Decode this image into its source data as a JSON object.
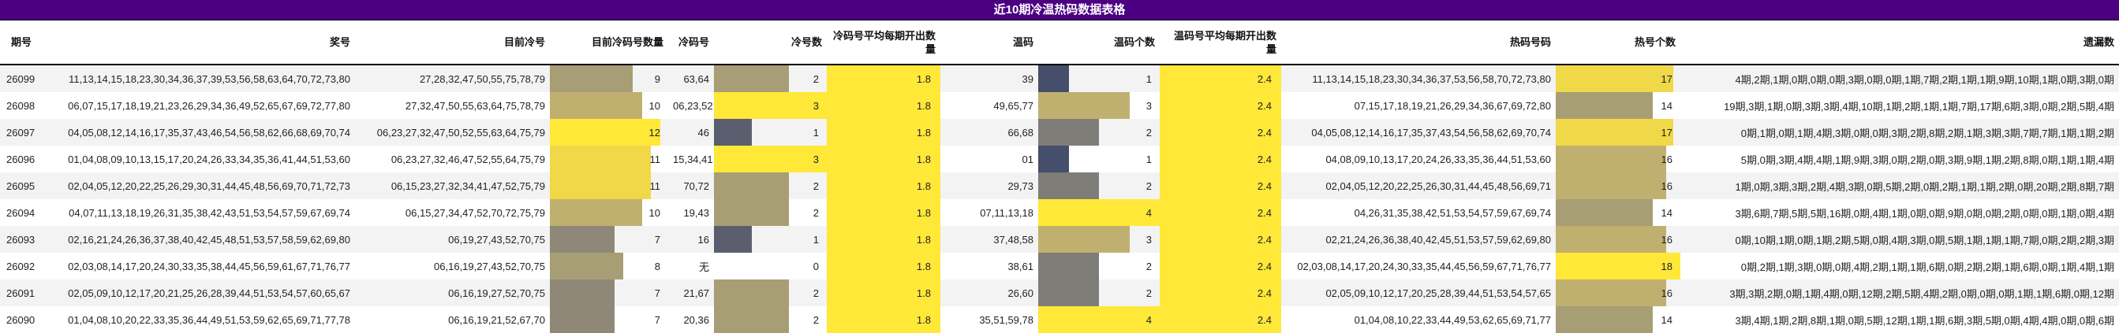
{
  "title": "近10期冷温热码数据表格",
  "columns": [
    "期号",
    "奖号",
    "目前冷号",
    "目前冷码号数量",
    "冷码号",
    "冷号数",
    "冷码号平均每期开出数量",
    "温码",
    "温码个数",
    "温码号平均每期开出数量",
    "热码号码",
    "热号个数",
    "遗漏数"
  ],
  "colors": {
    "title_bg": "#4B0082",
    "yellow": "#FFE838",
    "gold": "#F0D848",
    "olive": "#C0B070",
    "khaki": "#A89E75",
    "gray": "#8F8878",
    "slate": "#5A5E6E",
    "navy": "#454E6A",
    "darkgray": "#7F7D78"
  },
  "rows": [
    {
      "issue": "26099",
      "numbers": "11,13,14,15,18,23,30,34,36,37,39,53,56,58,63,64,70,72,73,80",
      "cold_current": "27,28,32,47,50,55,75,78,79",
      "cold_current_count": "9",
      "cold_codes": "63,64",
      "cold_count": "2",
      "cold_avg": "1.8",
      "warm_codes": "39",
      "warm_count": "1",
      "warm_avg": "2.4",
      "hot_codes": "11,13,14,15,18,23,30,34,36,37,53,56,58,70,72,73,80",
      "hot_count": "17",
      "missing": "4期,2期,1期,0期,0期,0期,3期,0期,0期,1期,7期,2期,1期,1期,9期,10期,1期,0期,3期,0期"
    },
    {
      "issue": "26098",
      "numbers": "06,07,15,17,18,19,21,23,26,29,34,36,49,52,65,67,69,72,77,80",
      "cold_current": "27,32,47,50,55,63,64,75,78,79",
      "cold_current_count": "10",
      "cold_codes": "06,23,52",
      "cold_count": "3",
      "cold_avg": "1.8",
      "warm_codes": "49,65,77",
      "warm_count": "3",
      "warm_avg": "2.4",
      "hot_codes": "07,15,17,18,19,21,26,29,34,36,67,69,72,80",
      "hot_count": "14",
      "missing": "19期,3期,1期,0期,3期,3期,4期,10期,1期,2期,1期,1期,7期,17期,6期,3期,0期,2期,5期,4期"
    },
    {
      "issue": "26097",
      "numbers": "04,05,08,12,14,16,17,35,37,43,46,54,56,58,62,66,68,69,70,74",
      "cold_current": "06,23,27,32,47,50,52,55,63,64,75,79",
      "cold_current_count": "12",
      "cold_codes": "46",
      "cold_count": "1",
      "cold_avg": "1.8",
      "warm_codes": "66,68",
      "warm_count": "2",
      "warm_avg": "2.4",
      "hot_codes": "04,05,08,12,14,16,17,35,37,43,54,56,58,62,69,70,74",
      "hot_count": "17",
      "missing": "0期,1期,0期,1期,4期,3期,0期,0期,3期,2期,8期,2期,1期,3期,3期,7期,7期,1期,1期,2期"
    },
    {
      "issue": "26096",
      "numbers": "01,04,08,09,10,13,15,17,20,24,26,33,34,35,36,41,44,51,53,60",
      "cold_current": "06,23,27,32,46,47,52,55,64,75,79",
      "cold_current_count": "11",
      "cold_codes": "15,34,41",
      "cold_count": "3",
      "cold_avg": "1.8",
      "warm_codes": "01",
      "warm_count": "1",
      "warm_avg": "2.4",
      "hot_codes": "04,08,09,10,13,17,20,24,26,33,35,36,44,51,53,60",
      "hot_count": "16",
      "missing": "5期,0期,3期,4期,4期,1期,9期,3期,0期,2期,0期,3期,9期,1期,2期,8期,0期,1期,1期,4期"
    },
    {
      "issue": "26095",
      "numbers": "02,04,05,12,20,22,25,26,29,30,31,44,45,48,56,69,70,71,72,73",
      "cold_current": "06,15,23,27,32,34,41,47,52,75,79",
      "cold_current_count": "11",
      "cold_codes": "70,72",
      "cold_count": "2",
      "cold_avg": "1.8",
      "warm_codes": "29,73",
      "warm_count": "2",
      "warm_avg": "2.4",
      "hot_codes": "02,04,05,12,20,22,25,26,30,31,44,45,48,56,69,71",
      "hot_count": "16",
      "missing": "1期,0期,3期,3期,2期,4期,3期,0期,5期,2期,0期,2期,1期,1期,2期,0期,20期,2期,8期,7期"
    },
    {
      "issue": "26094",
      "numbers": "04,07,11,13,18,19,26,31,35,38,42,43,51,53,54,57,59,67,69,74",
      "cold_current": "06,15,27,34,47,52,70,72,75,79",
      "cold_current_count": "10",
      "cold_codes": "19,43",
      "cold_count": "2",
      "cold_avg": "1.8",
      "warm_codes": "07,11,13,18",
      "warm_count": "4",
      "warm_avg": "2.4",
      "hot_codes": "04,26,31,35,38,42,51,53,54,57,59,67,69,74",
      "hot_count": "14",
      "missing": "3期,6期,7期,5期,5期,16期,0期,4期,1期,0期,0期,9期,0期,0期,2期,0期,0期,1期,0期,4期"
    },
    {
      "issue": "26093",
      "numbers": "02,16,21,24,26,36,37,38,40,42,45,48,51,53,57,58,59,62,69,80",
      "cold_current": "06,19,27,43,52,70,75",
      "cold_current_count": "7",
      "cold_codes": "16",
      "cold_count": "1",
      "cold_avg": "1.8",
      "warm_codes": "37,48,58",
      "warm_count": "3",
      "warm_avg": "2.4",
      "hot_codes": "02,21,24,26,36,38,40,42,45,51,53,57,59,62,69,80",
      "hot_count": "16",
      "missing": "0期,10期,1期,0期,1期,2期,5期,0期,4期,3期,0期,5期,1期,1期,1期,7期,0期,2期,2期,3期"
    },
    {
      "issue": "26092",
      "numbers": "02,03,08,14,17,20,24,30,33,35,38,44,45,56,59,61,67,71,76,77",
      "cold_current": "06,16,19,27,43,52,70,75",
      "cold_current_count": "8",
      "cold_codes": "无",
      "cold_count": "0",
      "cold_avg": "1.8",
      "warm_codes": "38,61",
      "warm_count": "2",
      "warm_avg": "2.4",
      "hot_codes": "02,03,08,14,17,20,24,30,33,35,44,45,56,59,67,71,76,77",
      "hot_count": "18",
      "missing": "0期,2期,1期,3期,0期,0期,4期,2期,1期,1期,6期,0期,2期,2期,1期,6期,0期,1期,4期,1期"
    },
    {
      "issue": "26091",
      "numbers": "02,05,09,10,12,17,20,21,25,26,28,39,44,51,53,54,57,60,65,67",
      "cold_current": "06,16,19,27,52,70,75",
      "cold_current_count": "7",
      "cold_codes": "21,67",
      "cold_count": "2",
      "cold_avg": "1.8",
      "warm_codes": "26,60",
      "warm_count": "2",
      "warm_avg": "2.4",
      "hot_codes": "02,05,09,10,12,17,20,25,28,39,44,51,53,54,57,65",
      "hot_count": "16",
      "missing": "3期,3期,2期,0期,1期,4期,0期,12期,2期,5期,4期,2期,0期,0期,0期,1期,1期,6期,0期,12期"
    },
    {
      "issue": "26090",
      "numbers": "01,04,08,10,20,22,33,35,36,44,49,51,53,59,62,65,69,71,77,78",
      "cold_current": "06,16,19,21,52,67,70",
      "cold_current_count": "7",
      "cold_codes": "20,36",
      "cold_count": "2",
      "cold_avg": "1.8",
      "warm_codes": "35,51,59,78",
      "warm_count": "4",
      "warm_avg": "2.4",
      "hot_codes": "01,04,08,10,22,33,44,49,53,62,65,69,71,77",
      "hot_count": "14",
      "missing": "3期,4期,1期,2期,8期,1期,0期,5期,12期,1期,1期,6期,3期,5期,0期,4期,4期,0期,0期,6期"
    }
  ]
}
